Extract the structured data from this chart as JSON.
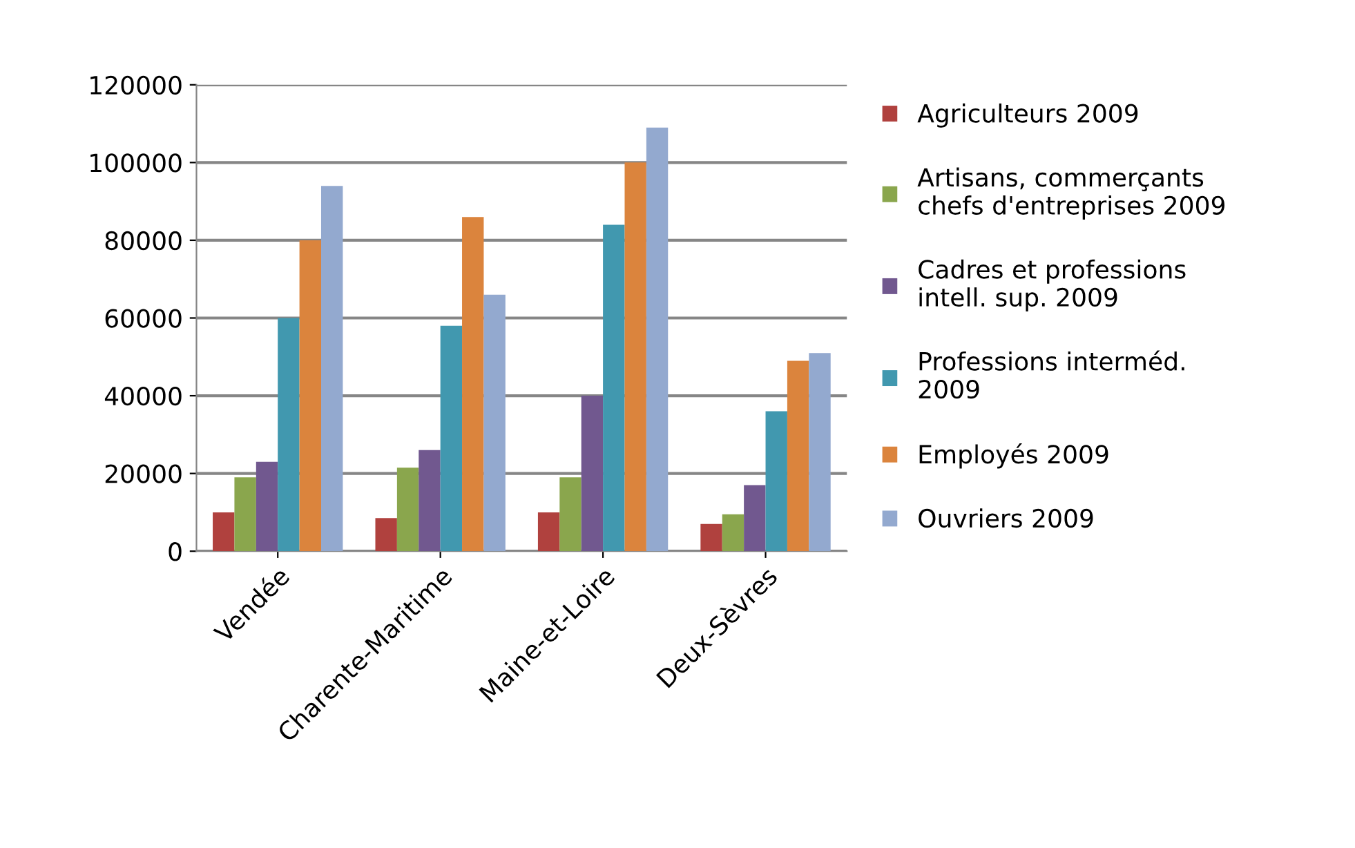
{
  "chart_data": {
    "type": "bar",
    "categories": [
      "Vendée",
      "Charente-Maritime",
      "Maine-et-Loire",
      "Deux-Sèvres"
    ],
    "series": [
      {
        "name": "Agriculteurs 2009",
        "color": "#b0413e",
        "values": [
          10000,
          8500,
          10000,
          7000
        ]
      },
      {
        "name": "Artisans, commerçants\nchefs d'entreprises 2009",
        "color": "#8aa64d",
        "values": [
          19000,
          21500,
          19000,
          9500
        ]
      },
      {
        "name": "Cadres et professions\nintell. sup. 2009",
        "color": "#71588f",
        "values": [
          23000,
          26000,
          40000,
          17000
        ]
      },
      {
        "name": "Professions interméd.\n2009",
        "color": "#4198af",
        "values": [
          60000,
          58000,
          84000,
          36000
        ]
      },
      {
        "name": "Employés 2009",
        "color": "#db843d",
        "values": [
          80000,
          86000,
          100000,
          49000
        ]
      },
      {
        "name": "Ouvriers 2009",
        "color": "#93a9cf",
        "values": [
          94000,
          66000,
          109000,
          51000
        ]
      }
    ],
    "ylim": [
      0,
      120000
    ],
    "yticks": [
      0,
      20000,
      40000,
      60000,
      80000,
      100000,
      120000
    ],
    "grid": "y",
    "legend": "right"
  }
}
